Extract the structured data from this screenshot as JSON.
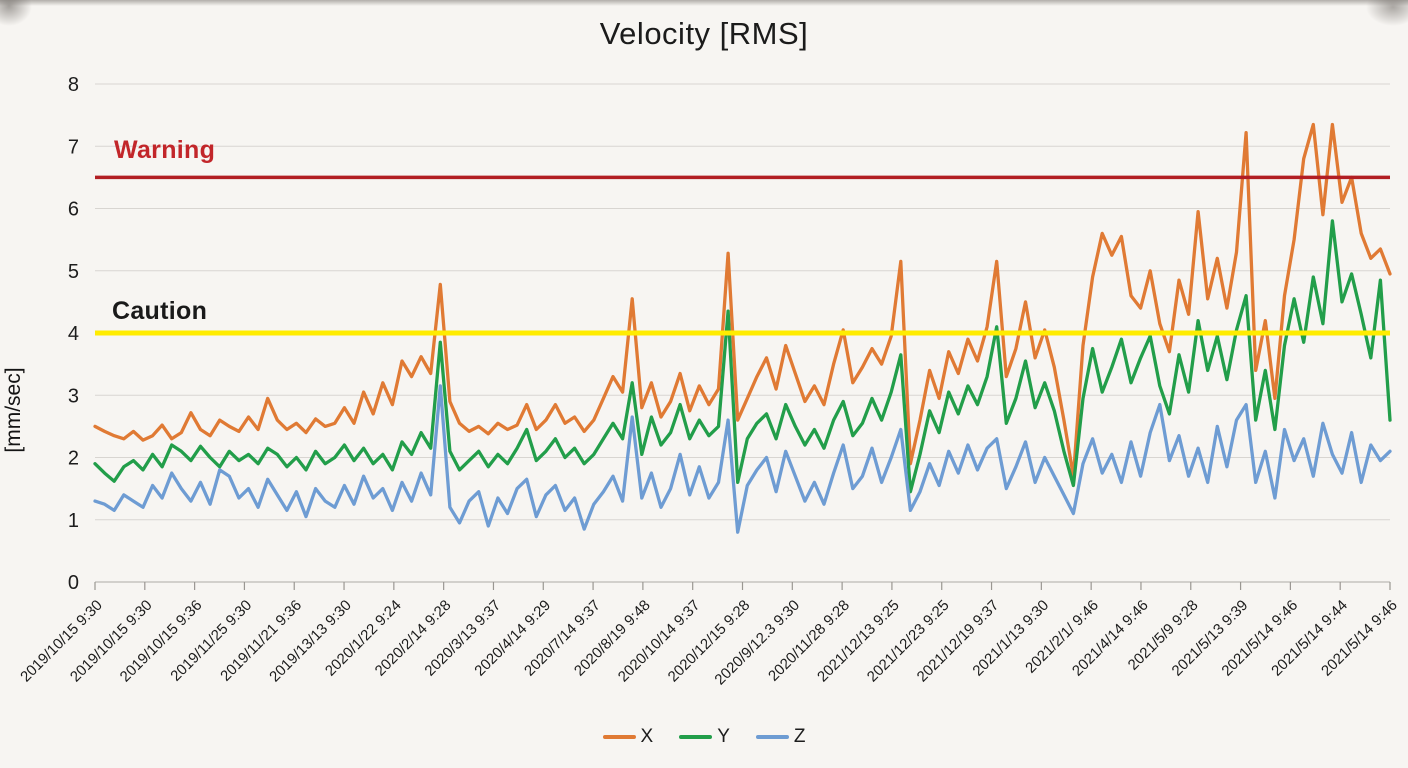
{
  "chart_data": {
    "type": "line",
    "title": "Velocity [RMS]",
    "ylabel": "[mm/sec]",
    "ylim": [
      0,
      8
    ],
    "y_ticks": [
      0,
      1,
      2,
      3,
      4,
      5,
      6,
      7,
      8
    ],
    "grid": "horizontal",
    "legend_position": "bottom",
    "x_tick_labels": [
      "2019/10/15 9:30",
      "2019/10/15 9:30",
      "2019/10/15 9:36",
      "2019/11/25 9:30",
      "2019/11/21 9:36",
      "2019/13/13 9:30",
      "2020/1/22 9:24",
      "2020/2/14 9:28",
      "2020/3/13 9:37",
      "2020/4/14 9:29",
      "2020/7/14 9:37",
      "2020/8/19 9:48",
      "2020/10/14 9:37",
      "2020/12/15 9:28",
      "2020/9/12.3 9:30",
      "2020/11/28 9:28",
      "2021/12/13 9:25",
      "2021/12/23 9:25",
      "2021/12/19 9:37",
      "2021/1/13 9:30",
      "2021/2/1/ 9:46",
      "2021/4/14 9:46",
      "2021/5/9 9:28",
      "2021/5/13 9:39",
      "2021/5/14 9:46",
      "2021/5/14 9:44",
      "2021/5/14 9:46"
    ],
    "thresholds": [
      {
        "label": "Warning",
        "value": 6.5,
        "line_color": "#b21e23",
        "label_color": "#c2262a"
      },
      {
        "label": "Caution",
        "value": 4.0,
        "line_color": "#ffec00",
        "label_color": "#1a1a1a"
      }
    ],
    "series": [
      {
        "name": "X",
        "color": "#e07a34",
        "values": [
          2.5,
          2.42,
          2.35,
          2.3,
          2.42,
          2.28,
          2.35,
          2.52,
          2.3,
          2.4,
          2.72,
          2.45,
          2.35,
          2.6,
          2.5,
          2.42,
          2.65,
          2.45,
          2.95,
          2.6,
          2.45,
          2.55,
          2.4,
          2.62,
          2.5,
          2.55,
          2.8,
          2.55,
          3.05,
          2.7,
          3.2,
          2.85,
          3.55,
          3.3,
          3.62,
          3.35,
          4.78,
          2.9,
          2.55,
          2.42,
          2.5,
          2.38,
          2.55,
          2.45,
          2.52,
          2.85,
          2.45,
          2.6,
          2.85,
          2.55,
          2.65,
          2.42,
          2.6,
          2.95,
          3.3,
          3.05,
          4.55,
          2.8,
          3.2,
          2.65,
          2.9,
          3.35,
          2.75,
          3.15,
          2.85,
          3.1,
          5.28,
          2.6,
          2.95,
          3.3,
          3.6,
          3.1,
          3.8,
          3.35,
          2.9,
          3.15,
          2.85,
          3.5,
          4.05,
          3.2,
          3.45,
          3.75,
          3.5,
          3.95,
          5.15,
          1.9,
          2.6,
          3.4,
          2.95,
          3.7,
          3.35,
          3.9,
          3.55,
          4.1,
          5.15,
          3.3,
          3.75,
          4.5,
          3.6,
          4.05,
          3.45,
          2.6,
          1.7,
          3.8,
          4.9,
          5.6,
          5.25,
          5.55,
          4.6,
          4.4,
          5.0,
          4.15,
          3.7,
          4.85,
          4.3,
          5.95,
          4.55,
          5.2,
          4.4,
          5.3,
          7.22,
          3.4,
          4.2,
          2.95,
          4.6,
          5.5,
          6.8,
          7.35,
          5.9,
          7.35,
          6.1,
          6.5,
          5.6,
          5.2,
          5.35,
          4.95
        ]
      },
      {
        "name": "Y",
        "color": "#229e4a",
        "values": [
          1.9,
          1.75,
          1.62,
          1.85,
          1.95,
          1.8,
          2.05,
          1.85,
          2.2,
          2.1,
          1.95,
          2.18,
          2.0,
          1.85,
          2.1,
          1.95,
          2.05,
          1.9,
          2.15,
          2.05,
          1.85,
          2.0,
          1.8,
          2.1,
          1.9,
          2.0,
          2.2,
          1.95,
          2.15,
          1.9,
          2.05,
          1.8,
          2.25,
          2.05,
          2.4,
          2.15,
          3.85,
          2.1,
          1.8,
          1.95,
          2.1,
          1.85,
          2.05,
          1.9,
          2.15,
          2.45,
          1.95,
          2.1,
          2.3,
          2.0,
          2.15,
          1.9,
          2.05,
          2.3,
          2.55,
          2.3,
          3.2,
          2.05,
          2.65,
          2.2,
          2.4,
          2.85,
          2.3,
          2.6,
          2.35,
          2.5,
          4.35,
          1.6,
          2.3,
          2.55,
          2.7,
          2.3,
          2.85,
          2.5,
          2.2,
          2.45,
          2.15,
          2.6,
          2.9,
          2.35,
          2.55,
          2.95,
          2.6,
          3.05,
          3.65,
          1.45,
          2.05,
          2.75,
          2.4,
          3.05,
          2.7,
          3.15,
          2.85,
          3.3,
          4.1,
          2.55,
          2.95,
          3.55,
          2.8,
          3.2,
          2.75,
          2.1,
          1.55,
          2.95,
          3.75,
          3.05,
          3.45,
          3.9,
          3.2,
          3.6,
          3.95,
          3.15,
          2.7,
          3.65,
          3.05,
          4.2,
          3.4,
          3.95,
          3.25,
          4.05,
          4.6,
          2.6,
          3.4,
          2.45,
          3.8,
          4.55,
          3.85,
          4.9,
          4.15,
          5.8,
          4.5,
          4.95,
          4.3,
          3.6,
          4.85,
          2.6
        ]
      },
      {
        "name": "Z",
        "color": "#6e9cd3",
        "values": [
          1.3,
          1.25,
          1.15,
          1.4,
          1.3,
          1.2,
          1.55,
          1.35,
          1.75,
          1.5,
          1.3,
          1.6,
          1.25,
          1.8,
          1.7,
          1.35,
          1.5,
          1.2,
          1.65,
          1.4,
          1.15,
          1.45,
          1.05,
          1.5,
          1.3,
          1.2,
          1.55,
          1.25,
          1.7,
          1.35,
          1.5,
          1.15,
          1.6,
          1.3,
          1.75,
          1.4,
          3.15,
          1.2,
          0.95,
          1.3,
          1.45,
          0.9,
          1.35,
          1.1,
          1.5,
          1.65,
          1.05,
          1.4,
          1.55,
          1.15,
          1.35,
          0.85,
          1.25,
          1.45,
          1.7,
          1.3,
          2.65,
          1.35,
          1.75,
          1.2,
          1.5,
          2.05,
          1.4,
          1.85,
          1.35,
          1.6,
          2.6,
          0.8,
          1.55,
          1.8,
          2.0,
          1.45,
          2.1,
          1.7,
          1.3,
          1.6,
          1.25,
          1.75,
          2.2,
          1.5,
          1.7,
          2.15,
          1.6,
          2.0,
          2.45,
          1.15,
          1.45,
          1.9,
          1.55,
          2.1,
          1.75,
          2.2,
          1.8,
          2.15,
          2.3,
          1.5,
          1.85,
          2.25,
          1.6,
          2.0,
          1.7,
          1.4,
          1.1,
          1.9,
          2.3,
          1.75,
          2.05,
          1.6,
          2.25,
          1.7,
          2.4,
          2.85,
          1.95,
          2.35,
          1.7,
          2.15,
          1.6,
          2.5,
          1.85,
          2.6,
          2.85,
          1.6,
          2.1,
          1.35,
          2.45,
          1.95,
          2.3,
          1.7,
          2.55,
          2.05,
          1.75,
          2.4,
          1.6,
          2.2,
          1.95,
          2.1
        ]
      }
    ]
  }
}
